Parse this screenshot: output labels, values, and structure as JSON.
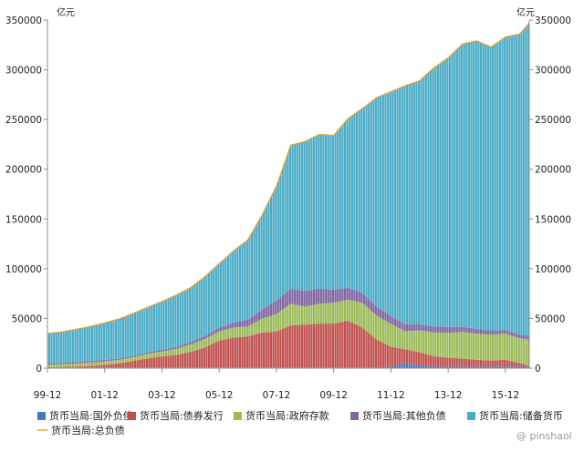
{
  "colors": {
    "external_liabilities": "#4472c4",
    "bond_issuance": "#c0504d",
    "government_deposits": "#9bbb59",
    "other_liabilities": "#8064a2",
    "reserve_money": "#4bacc6",
    "total_liabilities": "#f0a030",
    "axis": "#8c8c8c",
    "bar_gap": "#ffffff"
  },
  "watermark": "@ pinshaol",
  "chart_data": {
    "type": "area",
    "grid": false,
    "legend_position": "bottom",
    "units": {
      "left": "亿元",
      "right": "亿元"
    },
    "ylim": [
      0,
      350000
    ],
    "yticks": [
      0,
      50000,
      100000,
      150000,
      200000,
      250000,
      300000,
      350000
    ],
    "ytick_labels": [
      "0",
      "50000",
      "100000",
      "150000",
      "200000",
      "250000",
      "300000",
      "350000"
    ],
    "xtick_labels": [
      "99-12",
      "01-12",
      "03-12",
      "05-12",
      "07-12",
      "09-12",
      "11-12",
      "13-12",
      "15-12"
    ],
    "x_range": [
      "1999-12",
      "2016-10"
    ],
    "x": [
      "1999-12",
      "2000-06",
      "2000-12",
      "2001-06",
      "2001-12",
      "2002-06",
      "2002-12",
      "2003-06",
      "2003-12",
      "2004-06",
      "2004-12",
      "2005-06",
      "2005-12",
      "2006-06",
      "2006-12",
      "2007-06",
      "2007-12",
      "2008-06",
      "2008-12",
      "2009-06",
      "2009-12",
      "2010-06",
      "2010-12",
      "2011-06",
      "2011-12",
      "2012-06",
      "2012-12",
      "2013-06",
      "2013-12",
      "2014-06",
      "2014-12",
      "2015-06",
      "2015-12",
      "2016-06",
      "2016-10"
    ],
    "series": [
      {
        "name": "货币当局:国外负债",
        "color_key": "external_liabilities",
        "values": [
          800,
          800,
          800,
          800,
          800,
          800,
          800,
          800,
          800,
          800,
          800,
          800,
          800,
          800,
          800,
          800,
          800,
          800,
          800,
          800,
          800,
          800,
          800,
          800,
          1500,
          5000,
          2500,
          1500,
          1500,
          1500,
          1500,
          1500,
          1500,
          1500,
          1200
        ]
      },
      {
        "name": "货币当局:债券发行",
        "color_key": "bond_issuance",
        "values": [
          100,
          500,
          800,
          1500,
          2500,
          4000,
          6500,
          9000,
          11000,
          12500,
          15500,
          20000,
          27000,
          30000,
          31000,
          35000,
          36000,
          42000,
          43000,
          44000,
          44000,
          47000,
          40000,
          28000,
          20000,
          14000,
          13500,
          10500,
          9000,
          8000,
          7000,
          6000,
          7000,
          3500,
          1500
        ]
      },
      {
        "name": "货币当局:政府存款",
        "color_key": "government_deposits",
        "values": [
          2500,
          2800,
          3000,
          3500,
          3500,
          3500,
          3800,
          4500,
          5000,
          6000,
          7500,
          8500,
          9000,
          10000,
          10000,
          14000,
          17500,
          22000,
          18000,
          20000,
          21000,
          21000,
          25000,
          24000,
          23000,
          18000,
          22000,
          24000,
          25000,
          27000,
          26000,
          26000,
          26000,
          25000,
          26000
        ]
      },
      {
        "name": "货币当局:其他负债",
        "color_key": "other_liabilities",
        "values": [
          1500,
          1500,
          1500,
          1500,
          1500,
          1500,
          1500,
          1500,
          1600,
          2000,
          2500,
          3000,
          4000,
          5000,
          7000,
          9000,
          14000,
          15000,
          16000,
          15000,
          13000,
          12000,
          10000,
          9000,
          8000,
          7000,
          6000,
          6000,
          6000,
          5000,
          5000,
          4500,
          4000,
          3500,
          4000
        ]
      },
      {
        "name": "货币当局:储备货币",
        "color_key": "reserve_money",
        "values": [
          30000,
          31000,
          33000,
          35000,
          37500,
          40000,
          43000,
          46000,
          49000,
          52500,
          55000,
          60000,
          65000,
          72000,
          80000,
          95000,
          115000,
          145000,
          150000,
          155000,
          155000,
          170000,
          185000,
          210000,
          225000,
          240000,
          245000,
          260000,
          270000,
          285000,
          290000,
          285000,
          295000,
          303000,
          315000
        ]
      },
      {
        "name": "货币当局:总负债",
        "color_key": "total_liabilities",
        "style": "line",
        "values": [
          35000,
          36500,
          39000,
          42000,
          45500,
          49500,
          55000,
          61000,
          67000,
          73500,
          81000,
          92000,
          105000,
          118000,
          129000,
          154000,
          183000,
          224000,
          228000,
          235000,
          234000,
          251000,
          261000,
          272000,
          278000,
          284000,
          289000,
          302000,
          312000,
          326000,
          329000,
          323000,
          333000,
          336000,
          346000
        ]
      }
    ]
  }
}
